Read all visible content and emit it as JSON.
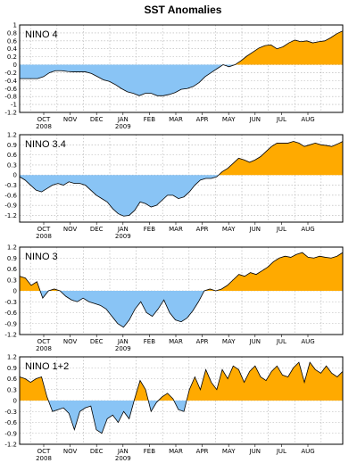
{
  "chart_data": {
    "title": "SST Anomalies",
    "type": "area",
    "colors": {
      "positive": "#ffaa00",
      "negative": "#89c4f5",
      "line": "#000000"
    },
    "grid": true,
    "months": [
      "OCT",
      "NOV",
      "DEC",
      "JAN",
      "FEB",
      "MAR",
      "APR",
      "MAY",
      "JUN",
      "JUL",
      "AUG"
    ],
    "years": [
      {
        "label": "2008",
        "month": "OCT"
      },
      {
        "label": "2009",
        "month": "JAN"
      }
    ],
    "x_unit": "weeks",
    "panels": [
      {
        "name": "NINO 4",
        "ylim": [
          -1.2,
          1.0
        ],
        "yticks": [
          "1",
          "0.8",
          "0.6",
          "0.4",
          "0.2",
          "0",
          "-0.2",
          "-0.4",
          "-0.6",
          "-0.8",
          "-1",
          "-1.2"
        ],
        "ytick_values": [
          1,
          0.8,
          0.6,
          0.4,
          0.2,
          0,
          -0.2,
          -0.4,
          -0.6,
          -0.8,
          -1,
          -1.2
        ],
        "values": [
          -0.35,
          -0.35,
          -0.35,
          -0.35,
          -0.3,
          -0.2,
          -0.15,
          -0.15,
          -0.17,
          -0.18,
          -0.18,
          -0.18,
          -0.22,
          -0.3,
          -0.38,
          -0.42,
          -0.5,
          -0.6,
          -0.68,
          -0.72,
          -0.78,
          -0.72,
          -0.72,
          -0.78,
          -0.78,
          -0.75,
          -0.7,
          -0.62,
          -0.6,
          -0.55,
          -0.45,
          -0.3,
          -0.2,
          -0.1,
          0.0,
          -0.05,
          0.0,
          0.1,
          0.22,
          0.32,
          0.42,
          0.48,
          0.5,
          0.4,
          0.45,
          0.55,
          0.62,
          0.58,
          0.6,
          0.55,
          0.58,
          0.6,
          0.68,
          0.78,
          0.85
        ]
      },
      {
        "name": "NINO 3.4",
        "ylim": [
          -1.4,
          1.2
        ],
        "yticks": [
          "1.2",
          "0.9",
          "0.6",
          "0.3",
          "0",
          "-0.3",
          "-0.6",
          "-0.9",
          "-1.2"
        ],
        "ytick_values": [
          1.2,
          0.9,
          0.6,
          0.3,
          0,
          -0.3,
          -0.6,
          -0.9,
          -1.2
        ],
        "values": [
          -0.05,
          -0.15,
          -0.3,
          -0.45,
          -0.5,
          -0.4,
          -0.3,
          -0.25,
          -0.3,
          -0.2,
          -0.25,
          -0.25,
          -0.3,
          -0.45,
          -0.6,
          -0.7,
          -0.8,
          -1.0,
          -1.15,
          -1.22,
          -1.2,
          -1.05,
          -0.8,
          -0.85,
          -0.95,
          -0.9,
          -0.75,
          -0.6,
          -0.6,
          -0.7,
          -0.65,
          -0.5,
          -0.3,
          -0.15,
          -0.1,
          -0.1,
          -0.05,
          0.1,
          0.2,
          0.35,
          0.5,
          0.45,
          0.38,
          0.45,
          0.55,
          0.7,
          0.85,
          0.95,
          0.95,
          0.95,
          1.0,
          0.95,
          0.85,
          0.9,
          0.95,
          0.9,
          0.88,
          0.85,
          0.92,
          1.0
        ]
      },
      {
        "name": "NINO 3",
        "ylim": [
          -1.2,
          1.2
        ],
        "yticks": [
          "1.2",
          "0.9",
          "0.6",
          "0.3",
          "0",
          "-0.3",
          "-0.6",
          "-0.9",
          "-1.2"
        ],
        "ytick_values": [
          1.2,
          0.9,
          0.6,
          0.3,
          0,
          -0.3,
          -0.6,
          -0.9,
          -1.2
        ],
        "values": [
          0.4,
          0.35,
          0.15,
          0.25,
          -0.2,
          0.0,
          0.05,
          0.0,
          -0.15,
          -0.25,
          -0.3,
          -0.2,
          -0.3,
          -0.35,
          -0.4,
          -0.5,
          -0.7,
          -0.9,
          -1.0,
          -0.8,
          -0.5,
          -0.3,
          -0.6,
          -0.7,
          -0.5,
          -0.25,
          -0.6,
          -0.8,
          -0.85,
          -0.75,
          -0.55,
          -0.3,
          0.0,
          0.05,
          0.0,
          0.05,
          0.15,
          0.3,
          0.45,
          0.4,
          0.5,
          0.45,
          0.55,
          0.65,
          0.8,
          0.9,
          0.95,
          0.92,
          1.0,
          1.05,
          0.92,
          0.9,
          0.95,
          0.92,
          0.9,
          0.95,
          1.05
        ]
      },
      {
        "name": "NINO 1+2",
        "ylim": [
          -1.2,
          1.2
        ],
        "yticks": [
          "1.2",
          "0.9",
          "0.6",
          "0.3",
          "0",
          "-0.3",
          "-0.6",
          "-0.9",
          "-1.2"
        ],
        "ytick_values": [
          1.2,
          0.9,
          0.6,
          0.3,
          0,
          -0.3,
          -0.6,
          -0.9,
          -1.2
        ],
        "values": [
          0.65,
          0.6,
          0.5,
          0.6,
          0.65,
          0.1,
          -0.3,
          -0.25,
          -0.2,
          -0.35,
          -0.8,
          -0.3,
          -0.2,
          -0.15,
          -0.8,
          -0.9,
          -0.5,
          -0.4,
          -0.6,
          -0.3,
          -0.5,
          0.05,
          0.55,
          0.3,
          -0.3,
          -0.05,
          0.1,
          0.2,
          0.05,
          -0.25,
          -0.3,
          0.3,
          0.65,
          0.3,
          0.85,
          0.5,
          0.3,
          0.85,
          0.6,
          0.95,
          0.85,
          0.5,
          0.8,
          0.95,
          0.65,
          0.55,
          0.8,
          0.95,
          0.7,
          0.65,
          0.9,
          1.05,
          0.5,
          1.05,
          0.85,
          0.75,
          0.95,
          0.75,
          0.65,
          0.8
        ]
      }
    ]
  }
}
